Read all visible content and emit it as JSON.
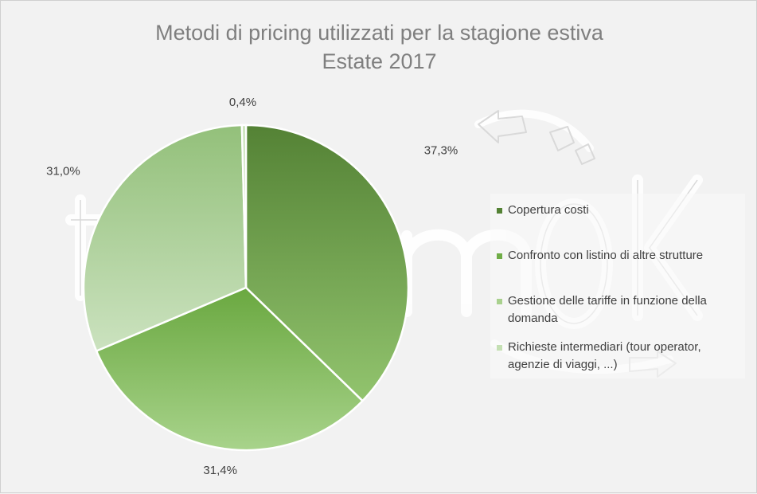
{
  "chart_data": {
    "type": "pie",
    "title": "Metodi di pricing utilizzati per la stagione estiva",
    "subtitle": "Estate 2017",
    "categories": [
      "Copertura costi",
      "Confronto con listino di altre strutture",
      "Gestione delle tariffe in funzione della domanda",
      "Richieste intermediari (tour operator, agenzie di viaggi, ...)"
    ],
    "values": [
      37.3,
      31.4,
      31.0,
      0.4
    ],
    "data_labels": [
      "37,3%",
      "31,4%",
      "31,0%",
      "0,4%"
    ],
    "colors": [
      "#548235",
      "#70ad47",
      "#a9d18e",
      "#c5e0b4"
    ],
    "legend_position": "right"
  }
}
